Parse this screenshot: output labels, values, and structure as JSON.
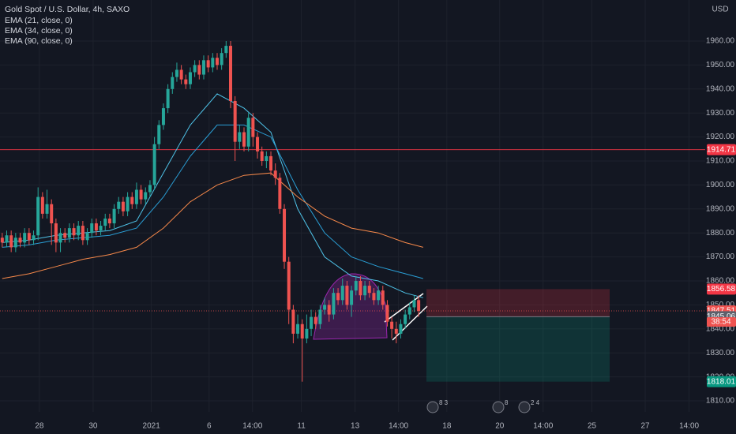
{
  "chart_data": {
    "type": "candlestick",
    "title": "Gold Spot / U.S. Dollar, 4h, SAXO",
    "currency": "USD",
    "up_color": "#26a69a",
    "down_color": "#ef5350",
    "open": [
      1878,
      1876,
      1879,
      1874,
      1878,
      1876,
      1880,
      1877,
      1879,
      1895,
      1888,
      1892,
      1884,
      1876,
      1880,
      1878,
      1882,
      1879,
      1883,
      1877,
      1880,
      1884,
      1881,
      1883,
      1886,
      1884,
      1890,
      1893,
      1889,
      1895,
      1892,
      1898,
      1894,
      1897,
      1900,
      1917,
      1925,
      1932,
      1940,
      1945,
      1948,
      1944,
      1942,
      1947,
      1950,
      1946,
      1952,
      1949,
      1953,
      1950,
      1955,
      1958,
      1935,
      1918,
      1922,
      1916,
      1928,
      1920,
      1914,
      1910,
      1912,
      1906,
      1903,
      1890,
      1868,
      1848,
      1838,
      1842,
      1836,
      1840,
      1845,
      1842,
      1848,
      1850,
      1846,
      1855,
      1852,
      1858,
      1850,
      1856,
      1860,
      1854,
      1858,
      1855,
      1852,
      1856,
      1850,
      1843,
      1840,
      1838,
      1842,
      1846,
      1849,
      1852
    ],
    "high": [
      1880,
      1881,
      1881,
      1880,
      1880,
      1882,
      1882,
      1881,
      1899,
      1897,
      1898,
      1894,
      1886,
      1882,
      1882,
      1884,
      1884,
      1885,
      1885,
      1882,
      1886,
      1886,
      1885,
      1888,
      1888,
      1892,
      1895,
      1895,
      1897,
      1897,
      1901,
      1900,
      1899,
      1902,
      1920,
      1927,
      1934,
      1942,
      1947,
      1951,
      1950,
      1946,
      1949,
      1952,
      1952,
      1954,
      1954,
      1955,
      1955,
      1957,
      1960,
      1960,
      1937,
      1925,
      1924,
      1930,
      1930,
      1922,
      1916,
      1914,
      1914,
      1909,
      1905,
      1892,
      1870,
      1850,
      1846,
      1844,
      1846,
      1848,
      1847,
      1850,
      1853,
      1852,
      1857,
      1857,
      1861,
      1860,
      1858,
      1862,
      1862,
      1860,
      1860,
      1857,
      1858,
      1858,
      1852,
      1845,
      1843,
      1844,
      1848,
      1851,
      1854,
      1854
    ],
    "low": [
      1874,
      1874,
      1872,
      1872,
      1874,
      1874,
      1875,
      1875,
      1877,
      1886,
      1886,
      1875,
      1872,
      1872,
      1876,
      1876,
      1877,
      1877,
      1875,
      1875,
      1878,
      1879,
      1879,
      1881,
      1882,
      1882,
      1888,
      1887,
      1887,
      1890,
      1890,
      1892,
      1892,
      1895,
      1898,
      1915,
      1923,
      1930,
      1938,
      1943,
      1942,
      1940,
      1940,
      1945,
      1944,
      1944,
      1947,
      1947,
      1948,
      1948,
      1953,
      1932,
      1910,
      1915,
      1914,
      1914,
      1916,
      1911,
      1908,
      1907,
      1904,
      1900,
      1888,
      1865,
      1842,
      1834,
      1836,
      1818,
      1834,
      1837,
      1840,
      1840,
      1846,
      1843,
      1844,
      1850,
      1850,
      1848,
      1845,
      1854,
      1852,
      1852,
      1853,
      1850,
      1850,
      1848,
      1841,
      1836,
      1834,
      1836,
      1840,
      1844,
      1847,
      1845
    ],
    "close": [
      1876,
      1879,
      1874,
      1878,
      1876,
      1880,
      1877,
      1879,
      1895,
      1888,
      1892,
      1884,
      1876,
      1880,
      1878,
      1882,
      1879,
      1883,
      1877,
      1880,
      1884,
      1881,
      1883,
      1886,
      1884,
      1890,
      1893,
      1889,
      1895,
      1892,
      1898,
      1894,
      1897,
      1900,
      1917,
      1925,
      1932,
      1940,
      1945,
      1948,
      1944,
      1942,
      1947,
      1950,
      1946,
      1952,
      1949,
      1953,
      1950,
      1955,
      1958,
      1935,
      1918,
      1922,
      1916,
      1928,
      1920,
      1914,
      1910,
      1912,
      1906,
      1903,
      1890,
      1868,
      1848,
      1838,
      1842,
      1836,
      1840,
      1845,
      1842,
      1848,
      1850,
      1846,
      1855,
      1852,
      1858,
      1850,
      1856,
      1860,
      1854,
      1858,
      1855,
      1852,
      1856,
      1850,
      1843,
      1840,
      1838,
      1842,
      1846,
      1849,
      1852,
      1847.51
    ],
    "series": [
      {
        "name": "EMA (21, close, 0)",
        "color": "#4fc3e8",
        "x": [
          0,
          6,
          12,
          18,
          24,
          30,
          36,
          42,
          48,
          54,
          60,
          66,
          72,
          78,
          84,
          90,
          94
        ],
        "values": [
          1876,
          1877,
          1879,
          1880,
          1881,
          1885,
          1905,
          1925,
          1938,
          1932,
          1922,
          1890,
          1870,
          1862,
          1860,
          1855,
          1853
        ]
      },
      {
        "name": "EMA (34, close, 0)",
        "color": "#2a9fd6",
        "x": [
          0,
          6,
          12,
          18,
          24,
          30,
          36,
          42,
          48,
          54,
          60,
          66,
          72,
          78,
          84,
          90,
          94
        ],
        "values": [
          1874,
          1875,
          1877,
          1878,
          1879,
          1882,
          1895,
          1912,
          1925,
          1925,
          1920,
          1898,
          1880,
          1870,
          1866,
          1863,
          1861
        ]
      },
      {
        "name": "EMA (90, close, 0)",
        "color": "#f7894a",
        "x": [
          0,
          6,
          12,
          18,
          24,
          30,
          36,
          42,
          48,
          54,
          60,
          66,
          72,
          78,
          84,
          90,
          94
        ],
        "values": [
          1861,
          1863,
          1866,
          1869,
          1871,
          1874,
          1882,
          1893,
          1900,
          1904,
          1905,
          1895,
          1887,
          1882,
          1880,
          1876,
          1874
        ]
      }
    ],
    "xlim": [
      -0.5,
      157
    ],
    "xticks": [
      {
        "value": 8.3,
        "label": "28"
      },
      {
        "value": 20.3,
        "label": "30"
      },
      {
        "value": 33.3,
        "label": "2021"
      },
      {
        "value": 46.2,
        "label": "6"
      },
      {
        "value": 55.9,
        "label": "14:00"
      },
      {
        "value": 66.8,
        "label": "11"
      },
      {
        "value": 78.8,
        "label": "13"
      },
      {
        "value": 88.5,
        "label": "14:00"
      },
      {
        "value": 99.3,
        "label": "18"
      },
      {
        "value": 111.1,
        "label": "20"
      },
      {
        "value": 120.8,
        "label": "14:00"
      },
      {
        "value": 131.7,
        "label": "25"
      },
      {
        "value": 143.6,
        "label": "27"
      },
      {
        "value": 153.4,
        "label": "14:00"
      }
    ],
    "ylim": [
      1805.4,
      1977.1
    ],
    "yticks": [
      {
        "value": 1810,
        "label": "1810.00"
      },
      {
        "value": 1820,
        "label": "1820.00"
      },
      {
        "value": 1830,
        "label": "1830.00"
      },
      {
        "value": 1840,
        "label": "1840.00"
      },
      {
        "value": 1850,
        "label": "1850.00"
      },
      {
        "value": 1860,
        "label": "1860.00"
      },
      {
        "value": 1870,
        "label": "1870.00"
      },
      {
        "value": 1880,
        "label": "1880.00"
      },
      {
        "value": 1890,
        "label": "1890.00"
      },
      {
        "value": 1900,
        "label": "1900.00"
      },
      {
        "value": 1910,
        "label": "1910.00"
      },
      {
        "value": 1920,
        "label": "1920.00"
      },
      {
        "value": 1930,
        "label": "1930.00"
      },
      {
        "value": 1940,
        "label": "1940.00"
      },
      {
        "value": 1950,
        "label": "1950.00"
      },
      {
        "value": 1960,
        "label": "1960.00"
      }
    ],
    "grid": true,
    "price_lines": [
      {
        "value": 1914.71,
        "label": "1914.71",
        "color": "#f23645"
      },
      {
        "value": 1847.51,
        "label": "1847.51",
        "color": "#ef5350"
      }
    ],
    "countdown": "38:54",
    "position": {
      "stop": {
        "value": 1856.58,
        "label": "1856.58",
        "color": "#f23645"
      },
      "entry": {
        "value": 1845.06,
        "label": "1845.06",
        "color": "#5d606b"
      },
      "target": {
        "value": 1818.01,
        "label": "1818.01",
        "color": "#089981"
      }
    },
    "events": [
      "8 3",
      "8",
      "2 4"
    ]
  }
}
